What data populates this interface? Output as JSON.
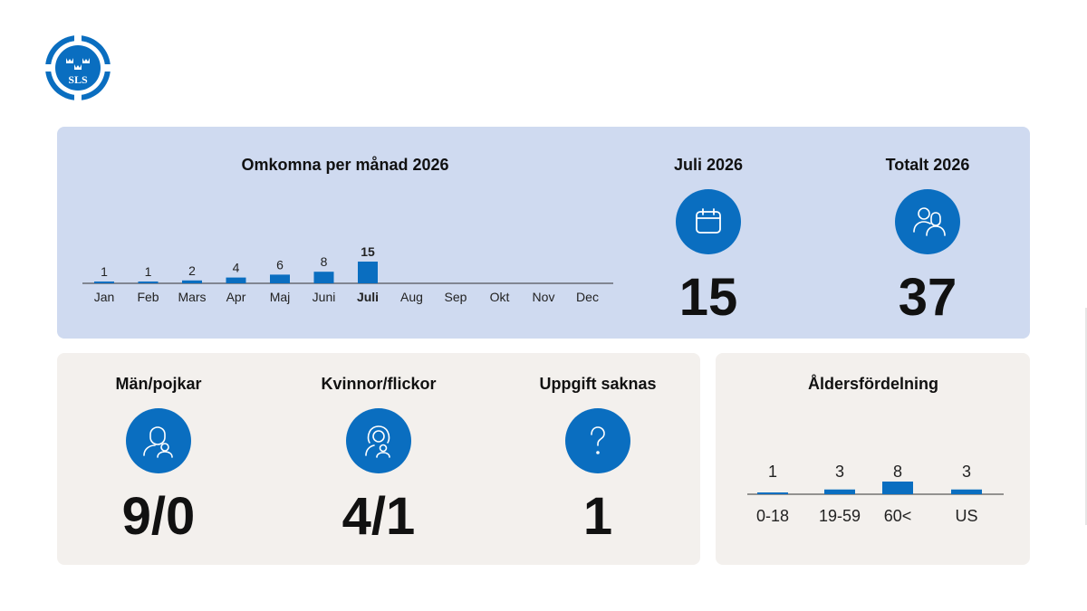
{
  "logo": {
    "text": "SLS",
    "icon": "lifebuoy-crowns-icon"
  },
  "monthly": {
    "title": "Omkomna per månad 2026"
  },
  "current_month": {
    "title": "Juli 2026",
    "value": "15",
    "icon": "calendar-icon"
  },
  "total": {
    "title": "Totalt 2026",
    "value": "37",
    "icon": "people-icon"
  },
  "gender": {
    "men": {
      "title": "Män/pojkar",
      "value": "9/0",
      "icon": "man-boy-icon"
    },
    "women": {
      "title": "Kvinnor/flickor",
      "value": "4/1",
      "icon": "woman-girl-icon"
    },
    "unknown": {
      "title": "Uppgift saknas",
      "value": "1",
      "icon": "question-mark-icon"
    }
  },
  "age": {
    "title": "Åldersfördelning"
  },
  "colors": {
    "accent": "#0a6ec0",
    "top_panel": "#cfdaf0",
    "bottom_panel": "#f3f0ed"
  },
  "chart_data": [
    {
      "type": "bar",
      "title": "Omkomna per månad 2026",
      "categories": [
        "Jan",
        "Feb",
        "Mars",
        "Apr",
        "Maj",
        "Juni",
        "Juli",
        "Aug",
        "Sep",
        "Okt",
        "Nov",
        "Dec"
      ],
      "values": [
        1,
        1,
        2,
        4,
        6,
        8,
        15,
        null,
        null,
        null,
        null,
        null
      ],
      "highlight": "Juli",
      "ylim": [
        0,
        15
      ],
      "grid": false
    },
    {
      "type": "bar",
      "title": "Åldersfördelning",
      "categories": [
        "0-18",
        "19-59",
        "60<",
        "US"
      ],
      "values": [
        1,
        3,
        8,
        3
      ],
      "ylim": [
        0,
        8
      ],
      "grid": false
    }
  ]
}
